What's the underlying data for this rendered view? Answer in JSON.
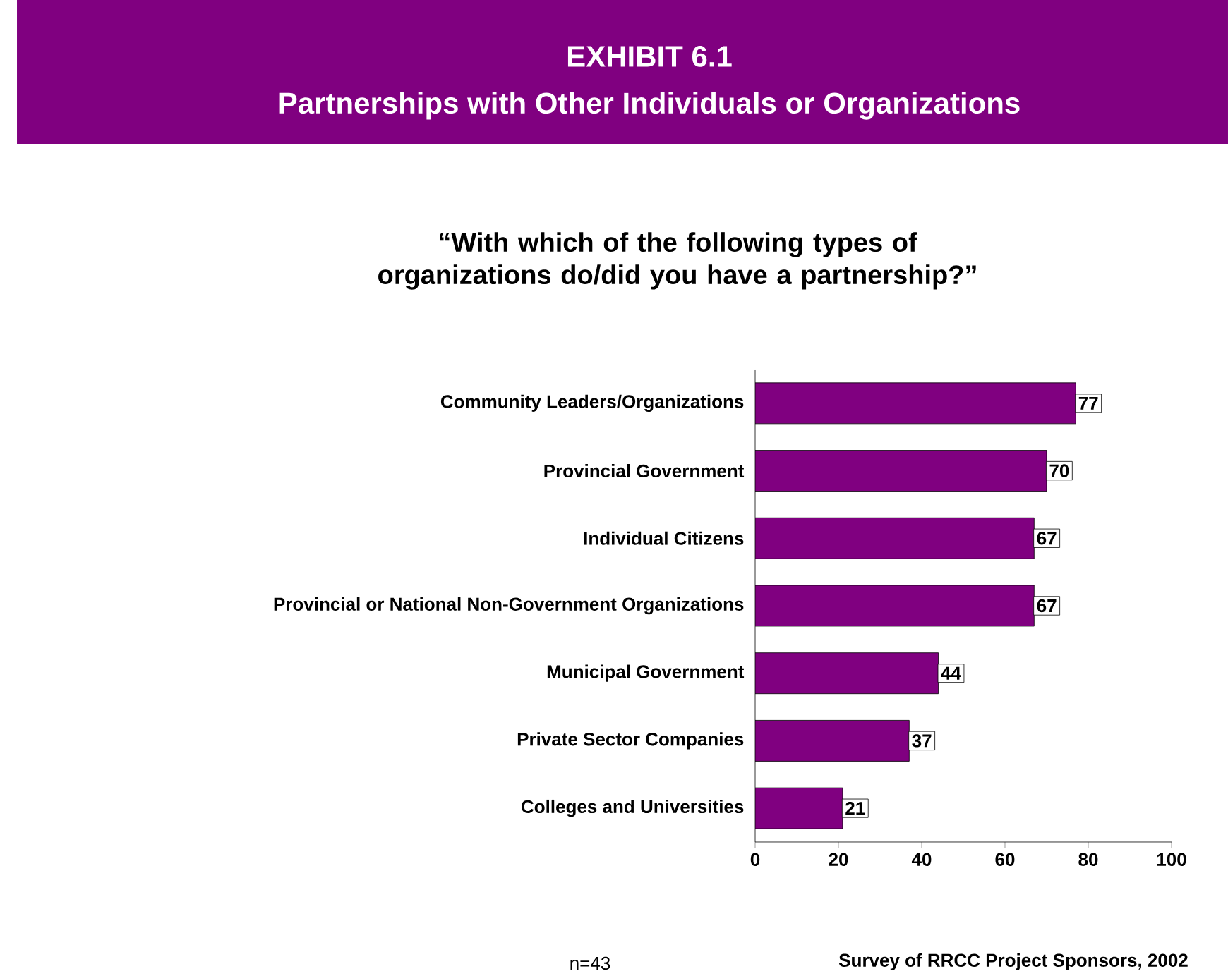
{
  "chart_data": {
    "type": "bar",
    "orientation": "horizontal",
    "title": "EXHIBIT 6.1",
    "subtitle": "Partnerships with Other Individuals or Organizations",
    "annotations": [
      "“With which of the following types of organizations do/did you have a partnership?”",
      "n=43",
      "Survey of RRCC Project Sponsors, 2002"
    ],
    "categories": [
      "Community Leaders/Organizations",
      "Provincial Government",
      "Individual Citizens",
      "Provincial or National Non-Government Organizations",
      "Municipal Government",
      "Private Sector Companies",
      "Colleges and Universities"
    ],
    "values": [
      77,
      70,
      67,
      67,
      44,
      37,
      21
    ],
    "color": "#800080",
    "xlim": [
      0,
      100
    ],
    "xticks": [
      0,
      20,
      40,
      60,
      80,
      100
    ],
    "grid": false,
    "data_labels": true
  }
}
